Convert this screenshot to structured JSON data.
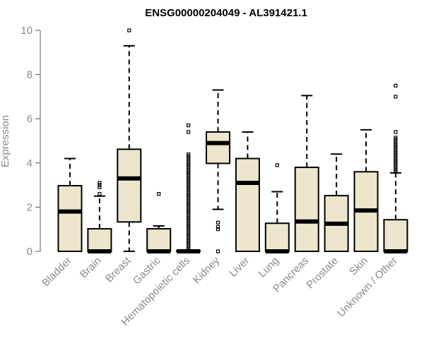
{
  "chart_data": {
    "type": "boxplot",
    "title": "ENSG00000204049 - AL391421.1",
    "ylabel": "Expression",
    "xlabel": "",
    "ylim": [
      0,
      10
    ],
    "yticks": [
      "0",
      "2",
      "4",
      "6",
      "8",
      "10"
    ],
    "grid": false,
    "colors": {
      "box_fill": "#ede6cc",
      "stroke": "#000000",
      "axis_text": "#8a8a8a"
    },
    "categories": [
      "Bladder",
      "Brain",
      "Breast",
      "Gastric",
      "Hematopoietic cells",
      "Kidney",
      "Liver",
      "Lung",
      "Pancreas",
      "Prostate",
      "Skin",
      "Unknown / Other"
    ],
    "boxes": [
      {
        "low": 0,
        "q1": 0,
        "median": 1.8,
        "q3": 2.97,
        "high": 4.2,
        "outliers": []
      },
      {
        "low": 0,
        "q1": 0,
        "median": 0,
        "q3": 1.02,
        "high": 2.5,
        "outliers": [
          2.6,
          2.9,
          3.0,
          3.1
        ]
      },
      {
        "low": 0,
        "q1": 1.33,
        "median": 3.3,
        "q3": 4.62,
        "high": 9.3,
        "outliers": [
          10.0
        ]
      },
      {
        "low": 0,
        "q1": 0,
        "median": 0,
        "q3": 1.02,
        "high": 1.15,
        "outliers": [
          2.6
        ]
      },
      {
        "low": 0,
        "q1": 0,
        "median": 0,
        "q3": 0.02,
        "high": 0.05,
        "dense_outliers": [
          0.1,
          4.4
        ],
        "outliers": [
          5.4,
          5.7
        ]
      },
      {
        "low": 1.9,
        "q1": 3.98,
        "median": 4.9,
        "q3": 5.4,
        "high": 7.3,
        "outliers": [
          0,
          1.0,
          1.1,
          1.3
        ]
      },
      {
        "low": 0,
        "q1": 0,
        "median": 3.1,
        "q3": 4.2,
        "high": 5.4,
        "outliers": []
      },
      {
        "low": 0,
        "q1": 0,
        "median": 0,
        "q3": 1.27,
        "high": 2.7,
        "outliers": [
          3.9
        ]
      },
      {
        "low": 0,
        "q1": 0,
        "median": 1.35,
        "q3": 3.8,
        "high": 7.05,
        "outliers": []
      },
      {
        "low": 0,
        "q1": 0,
        "median": 1.25,
        "q3": 2.52,
        "high": 4.4,
        "outliers": []
      },
      {
        "low": 0,
        "q1": 0,
        "median": 1.85,
        "q3": 3.6,
        "high": 5.5,
        "outliers": []
      },
      {
        "low": 0,
        "q1": 0,
        "median": 0,
        "q3": 1.43,
        "high": 3.55,
        "dense_outliers": [
          3.6,
          5.2
        ],
        "outliers": [
          5.4,
          7.0,
          7.5
        ]
      }
    ]
  }
}
